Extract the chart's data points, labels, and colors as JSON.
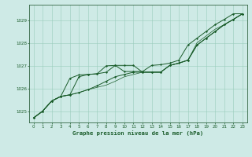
{
  "xlabel": "Graphe pression niveau de la mer (hPa)",
  "bg_color": "#ceeae6",
  "grid_color": "#99ccbb",
  "line_color": "#1a5c2a",
  "spine_color": "#336644",
  "xlim": [
    -0.5,
    23.5
  ],
  "ylim": [
    1024.5,
    1029.7
  ],
  "yticks": [
    1025,
    1026,
    1027,
    1028,
    1029
  ],
  "xticks": [
    0,
    1,
    2,
    3,
    4,
    5,
    6,
    7,
    8,
    9,
    10,
    11,
    12,
    13,
    14,
    15,
    16,
    17,
    18,
    19,
    20,
    21,
    22,
    23
  ],
  "series": {
    "line1": [
      1024.7,
      1025.0,
      1025.45,
      1025.65,
      1026.45,
      1026.6,
      1026.62,
      1026.65,
      1027.0,
      1027.02,
      1026.75,
      1026.75,
      1026.75,
      1027.02,
      1027.05,
      1027.12,
      1027.25,
      1027.92,
      1028.22,
      1028.52,
      1028.82,
      1029.05,
      1029.3,
      1029.3
    ],
    "line2": [
      1024.7,
      1025.0,
      1025.45,
      1025.65,
      1025.72,
      1025.82,
      1025.95,
      1026.12,
      1026.32,
      1026.52,
      1026.62,
      1026.72,
      1026.72,
      1026.72,
      1026.72,
      1027.02,
      1027.12,
      1027.25,
      1027.92,
      1028.22,
      1028.52,
      1028.82,
      1029.05,
      1029.3
    ],
    "line3": [
      1024.7,
      1025.0,
      1025.45,
      1025.65,
      1025.72,
      1025.82,
      1025.95,
      1026.05,
      1026.15,
      1026.32,
      1026.52,
      1026.62,
      1026.72,
      1026.72,
      1026.72,
      1027.02,
      1027.12,
      1027.25,
      1028.02,
      1028.32,
      1028.62,
      1028.82,
      1029.05,
      1029.3
    ],
    "line4": [
      1024.7,
      1025.0,
      1025.45,
      1025.65,
      1025.72,
      1026.52,
      1026.62,
      1026.65,
      1026.72,
      1027.02,
      1027.02,
      1027.02,
      1026.72,
      1026.72,
      1026.72,
      1027.02,
      1027.12,
      1027.25,
      1027.92,
      1028.22,
      1028.52,
      1028.82,
      1029.05,
      1029.3
    ]
  }
}
